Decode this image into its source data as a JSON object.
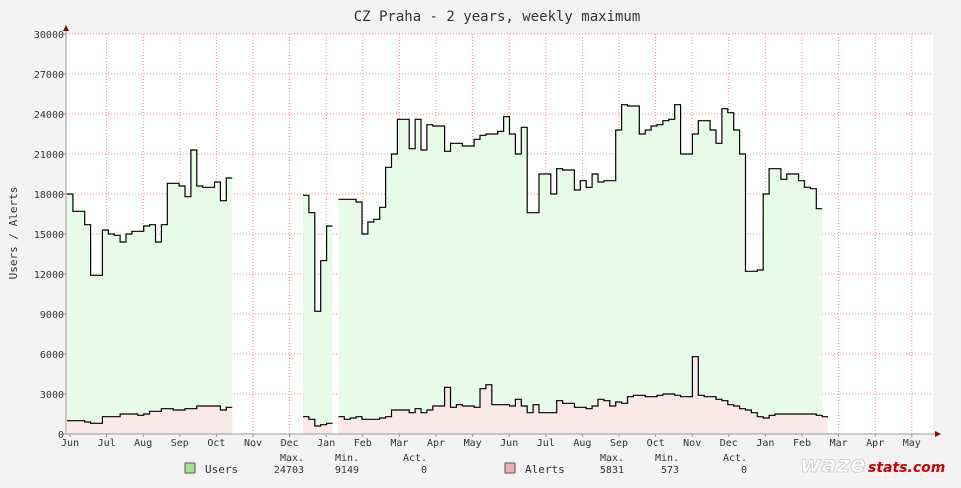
{
  "chart_data": {
    "type": "area",
    "title": "CZ Praha - 2 years, weekly maximum",
    "ylabel": "Users / Alerts",
    "ylim": [
      0,
      30000
    ],
    "y_ticks": [
      "0",
      "3000",
      "6000",
      "9000",
      "12000",
      "15000",
      "18000",
      "21000",
      "24000",
      "27000",
      "30000"
    ],
    "x_ticks": [
      "Jun",
      "Jul",
      "Aug",
      "Sep",
      "Oct",
      "Nov",
      "Dec",
      "Jan",
      "Feb",
      "Mar",
      "Apr",
      "May",
      "Jun",
      "Jul",
      "Aug",
      "Sep",
      "Oct",
      "Nov",
      "Dec",
      "Jan",
      "Feb",
      "Mar",
      "Apr",
      "May"
    ],
    "grid": true,
    "x_unit": "week index (0 = start of first Jun)",
    "series": [
      {
        "name": "Users",
        "color": "#000000",
        "fill": "#e8fbe8",
        "swatch": "#a8e090",
        "values": [
          18000,
          16700,
          16700,
          15700,
          11900,
          11900,
          15300,
          15000,
          14900,
          14400,
          15000,
          15200,
          15200,
          15600,
          15700,
          14400,
          15700,
          18800,
          18800,
          18600,
          17800,
          21300,
          18600,
          18500,
          18500,
          18900,
          17500,
          19200,
          null,
          null,
          null,
          null,
          null,
          null,
          null,
          null,
          null,
          null,
          null,
          null,
          17900,
          16600,
          9200,
          13000,
          15600,
          null,
          17600,
          17600,
          17600,
          17400,
          15000,
          15900,
          16100,
          17000,
          20000,
          21000,
          23600,
          23600,
          21400,
          23600,
          21300,
          23200,
          23100,
          23100,
          21200,
          21800,
          21800,
          21600,
          21600,
          22100,
          22400,
          22500,
          22500,
          22700,
          23800,
          22500,
          21000,
          23000,
          16600,
          16600,
          19500,
          19500,
          18000,
          19900,
          19800,
          19800,
          18300,
          19000,
          18500,
          19500,
          18900,
          19000,
          19000,
          22800,
          24700,
          24600,
          24600,
          22500,
          22800,
          23100,
          23200,
          23500,
          23600,
          24700,
          21000,
          21000,
          22500,
          23500,
          23500,
          22800,
          21800,
          24400,
          24100,
          22800,
          21000,
          12200,
          12200,
          12300,
          18000,
          19900,
          19900,
          19100,
          19500,
          19500,
          19000,
          18500,
          18400,
          16900
        ]
      },
      {
        "name": "Alerts",
        "color": "#000000",
        "fill": "#fbe8e8",
        "swatch": "#f0b0b0",
        "values": [
          1000,
          1000,
          1000,
          900,
          800,
          800,
          1300,
          1300,
          1300,
          1500,
          1500,
          1500,
          1400,
          1500,
          1700,
          1700,
          1900,
          1900,
          1800,
          1800,
          1900,
          1900,
          2100,
          2100,
          2100,
          2100,
          1800,
          2000,
          null,
          null,
          null,
          null,
          null,
          null,
          null,
          null,
          null,
          null,
          null,
          null,
          1300,
          1100,
          600,
          700,
          800,
          null,
          1300,
          1100,
          1200,
          1300,
          1100,
          1100,
          1100,
          1200,
          1300,
          1800,
          1800,
          1800,
          1600,
          1900,
          1600,
          1800,
          2100,
          2100,
          3500,
          2000,
          2200,
          2100,
          2100,
          2000,
          3400,
          3700,
          2200,
          2200,
          2200,
          2100,
          2600,
          2100,
          1600,
          2200,
          1600,
          1600,
          1600,
          2500,
          2300,
          2300,
          2000,
          2000,
          1900,
          2100,
          2600,
          2500,
          2100,
          2400,
          2300,
          2800,
          2900,
          2900,
          2800,
          2800,
          2900,
          3000,
          3000,
          2900,
          2800,
          2800,
          5800,
          2900,
          2800,
          2800,
          2600,
          2500,
          2200,
          2100,
          1900,
          1800,
          1600,
          1300,
          1200,
          1400,
          1500,
          1500,
          1500,
          1500,
          1500,
          1500,
          1500,
          1400,
          1300
        ]
      }
    ],
    "legend": {
      "headers": [
        "Max.",
        "Min.",
        "Act."
      ],
      "entries": [
        {
          "label": "Users",
          "max": "24703",
          "min": "9149",
          "act": "0"
        },
        {
          "label": "Alerts",
          "max": "5831",
          "min": "573",
          "act": "0"
        }
      ]
    }
  },
  "logo": {
    "part1": "waze",
    "part2": "stats.com"
  }
}
